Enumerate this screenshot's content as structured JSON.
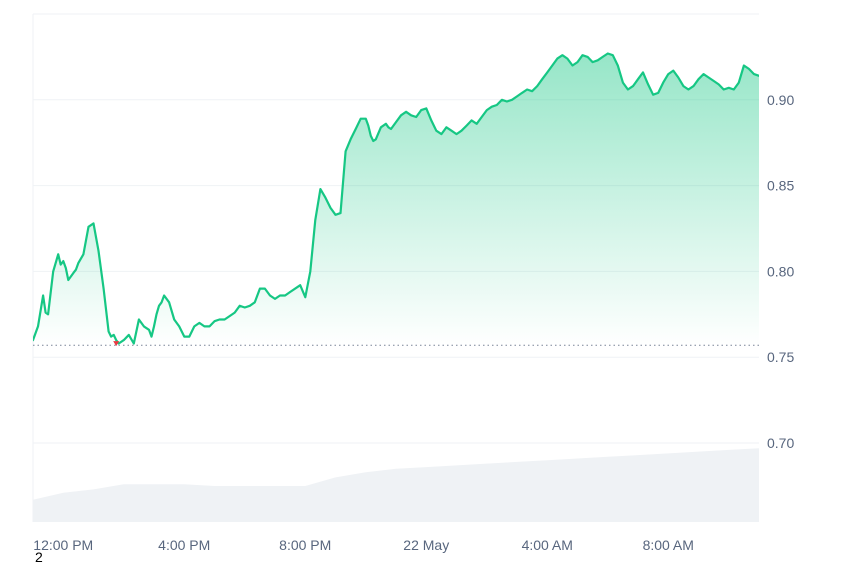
{
  "chart_data": {
    "type": "area",
    "y_ticks": [
      {
        "value": 0.7,
        "label": "0.70"
      },
      {
        "value": 0.75,
        "label": "0.75"
      },
      {
        "value": 0.8,
        "label": "0.80"
      },
      {
        "value": 0.85,
        "label": "0.85"
      },
      {
        "value": 0.9,
        "label": "0.90"
      }
    ],
    "ylim": [
      0.654,
      0.95
    ],
    "xlim": [
      0,
      1440
    ],
    "x_ticks": [
      {
        "t": 60,
        "label": "12:00 PM"
      },
      {
        "t": 300,
        "label": "4:00 PM"
      },
      {
        "t": 540,
        "label": "8:00 PM"
      },
      {
        "t": 780,
        "label": "22 May"
      },
      {
        "t": 1020,
        "label": "4:00 AM"
      },
      {
        "t": 1260,
        "label": "8:00 AM"
      }
    ],
    "baseline": 0.757,
    "grid": true,
    "price": {
      "t": [
        0,
        10,
        20,
        25,
        30,
        40,
        50,
        55,
        60,
        65,
        70,
        80,
        85,
        90,
        100,
        110,
        120,
        130,
        140,
        150,
        155,
        160,
        165,
        170,
        180,
        190,
        200,
        210,
        220,
        230,
        235,
        240,
        245,
        250,
        255,
        260,
        270,
        280,
        290,
        300,
        310,
        320,
        330,
        340,
        350,
        360,
        370,
        380,
        390,
        400,
        410,
        420,
        430,
        440,
        450,
        460,
        470,
        480,
        490,
        500,
        510,
        520,
        530,
        540,
        550,
        560,
        570,
        580,
        590,
        600,
        610,
        620,
        630,
        640,
        650,
        660,
        665,
        670,
        675,
        680,
        690,
        700,
        705,
        710,
        720,
        730,
        740,
        750,
        760,
        770,
        780,
        790,
        800,
        810,
        820,
        830,
        840,
        850,
        860,
        870,
        880,
        890,
        900,
        910,
        920,
        930,
        940,
        950,
        960,
        970,
        980,
        990,
        1000,
        1010,
        1020,
        1030,
        1040,
        1050,
        1060,
        1070,
        1080,
        1090,
        1100,
        1110,
        1120,
        1130,
        1140,
        1150,
        1160,
        1170,
        1180,
        1190,
        1200,
        1210,
        1220,
        1230,
        1240,
        1250,
        1260,
        1270,
        1280,
        1290,
        1300,
        1310,
        1320,
        1330,
        1340,
        1350,
        1360,
        1370,
        1380,
        1390,
        1400,
        1410,
        1420,
        1430,
        1440
      ],
      "v": [
        0.76,
        0.768,
        0.786,
        0.776,
        0.775,
        0.8,
        0.81,
        0.804,
        0.806,
        0.802,
        0.795,
        0.799,
        0.801,
        0.805,
        0.81,
        0.826,
        0.828,
        0.812,
        0.79,
        0.765,
        0.762,
        0.763,
        0.76,
        0.758,
        0.76,
        0.763,
        0.758,
        0.772,
        0.768,
        0.766,
        0.762,
        0.768,
        0.775,
        0.78,
        0.782,
        0.786,
        0.782,
        0.772,
        0.768,
        0.762,
        0.762,
        0.768,
        0.77,
        0.768,
        0.768,
        0.771,
        0.772,
        0.772,
        0.774,
        0.776,
        0.78,
        0.779,
        0.78,
        0.782,
        0.79,
        0.79,
        0.786,
        0.784,
        0.786,
        0.786,
        0.788,
        0.79,
        0.792,
        0.785,
        0.8,
        0.83,
        0.848,
        0.843,
        0.837,
        0.833,
        0.834,
        0.87,
        0.877,
        0.883,
        0.889,
        0.889,
        0.885,
        0.879,
        0.876,
        0.877,
        0.884,
        0.886,
        0.884,
        0.883,
        0.887,
        0.891,
        0.893,
        0.891,
        0.89,
        0.894,
        0.895,
        0.888,
        0.882,
        0.88,
        0.884,
        0.882,
        0.88,
        0.882,
        0.885,
        0.888,
        0.886,
        0.89,
        0.894,
        0.896,
        0.897,
        0.9,
        0.899,
        0.9,
        0.902,
        0.904,
        0.906,
        0.905,
        0.908,
        0.912,
        0.916,
        0.92,
        0.924,
        0.926,
        0.924,
        0.92,
        0.922,
        0.926,
        0.925,
        0.922,
        0.923,
        0.925,
        0.927,
        0.926,
        0.92,
        0.91,
        0.906,
        0.908,
        0.912,
        0.916,
        0.909,
        0.903,
        0.904,
        0.91,
        0.915,
        0.917,
        0.913,
        0.908,
        0.906,
        0.908,
        0.912,
        0.915,
        0.913,
        0.911,
        0.909,
        0.906,
        0.907,
        0.906,
        0.91,
        0.92,
        0.918,
        0.915,
        0.914
      ]
    },
    "volume": {
      "t": [
        0,
        60,
        120,
        180,
        240,
        300,
        360,
        420,
        480,
        540,
        600,
        660,
        720,
        780,
        840,
        900,
        960,
        1020,
        1080,
        1140,
        1200,
        1260,
        1320,
        1380,
        1440
      ],
      "v": [
        0.667,
        0.671,
        0.673,
        0.676,
        0.676,
        0.676,
        0.675,
        0.675,
        0.675,
        0.675,
        0.68,
        0.683,
        0.685,
        0.686,
        0.687,
        0.688,
        0.689,
        0.69,
        0.691,
        0.692,
        0.693,
        0.694,
        0.695,
        0.696,
        0.697
      ]
    },
    "min_marker": {
      "t": 165
    }
  },
  "footnote": "2",
  "colors": {
    "line": "#16c784",
    "grid": "#eff2f5",
    "axis_text": "#58667e",
    "volume": "#eff2f5",
    "baseline": "#58667e",
    "min_marker": "#ea3943"
  }
}
